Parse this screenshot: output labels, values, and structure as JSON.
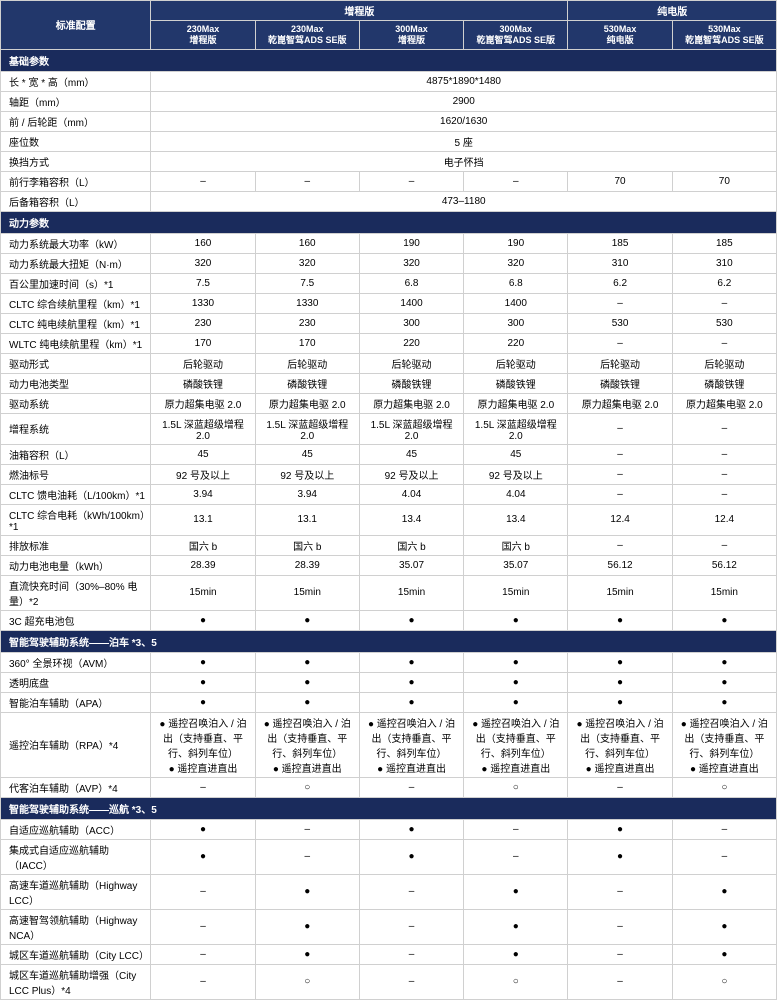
{
  "header": {
    "stdConfig": "标准配置",
    "group1": "增程版",
    "group2": "纯电版",
    "cols": [
      {
        "t": "230Max",
        "s": "增程版"
      },
      {
        "t": "230Max",
        "s": "乾崑智驾ADS SE版"
      },
      {
        "t": "300Max",
        "s": "增程版"
      },
      {
        "t": "300Max",
        "s": "乾崑智驾ADS SE版"
      },
      {
        "t": "530Max",
        "s": "纯电版"
      },
      {
        "t": "530Max",
        "s": "乾崑智驾ADS SE版"
      }
    ]
  },
  "sections": [
    {
      "title": "基础参数",
      "rows": [
        {
          "l": "长 * 宽 * 高（mm）",
          "span": "4875*1890*1480"
        },
        {
          "l": "轴距（mm）",
          "span": "2900"
        },
        {
          "l": "前 / 后轮距（mm）",
          "span": "1620/1630"
        },
        {
          "l": "座位数",
          "span": "5 座"
        },
        {
          "l": "换挡方式",
          "span": "电子怀挡"
        },
        {
          "l": "前行李箱容积（L）",
          "v": [
            "–",
            "–",
            "–",
            "–",
            "70",
            "70"
          ]
        },
        {
          "l": "后备箱容积（L）",
          "span": "473–1180"
        }
      ]
    },
    {
      "title": "动力参数",
      "rows": [
        {
          "l": "动力系统最大功率（kW）",
          "v": [
            "160",
            "160",
            "190",
            "190",
            "185",
            "185"
          ]
        },
        {
          "l": "动力系统最大扭矩（N·m）",
          "v": [
            "320",
            "320",
            "320",
            "320",
            "310",
            "310"
          ]
        },
        {
          "l": "百公里加速时间（s）*1",
          "v": [
            "7.5",
            "7.5",
            "6.8",
            "6.8",
            "6.2",
            "6.2"
          ]
        },
        {
          "l": "CLTC 综合续航里程（km）*1",
          "v": [
            "1330",
            "1330",
            "1400",
            "1400",
            "–",
            "–"
          ]
        },
        {
          "l": "CLTC 纯电续航里程（km）*1",
          "v": [
            "230",
            "230",
            "300",
            "300",
            "530",
            "530"
          ]
        },
        {
          "l": "WLTC 纯电续航里程（km）*1",
          "v": [
            "170",
            "170",
            "220",
            "220",
            "–",
            "–"
          ]
        },
        {
          "l": "驱动形式",
          "v": [
            "后轮驱动",
            "后轮驱动",
            "后轮驱动",
            "后轮驱动",
            "后轮驱动",
            "后轮驱动"
          ]
        },
        {
          "l": "动力电池类型",
          "v": [
            "磷酸铁锂",
            "磷酸铁锂",
            "磷酸铁锂",
            "磷酸铁锂",
            "磷酸铁锂",
            "磷酸铁锂"
          ]
        },
        {
          "l": "驱动系统",
          "v": [
            "原力超集电驱 2.0",
            "原力超集电驱 2.0",
            "原力超集电驱 2.0",
            "原力超集电驱 2.0",
            "原力超集电驱 2.0",
            "原力超集电驱 2.0"
          ]
        },
        {
          "l": "增程系统",
          "v": [
            "1.5L 深蓝超级增程 2.0",
            "1.5L 深蓝超级增程 2.0",
            "1.5L 深蓝超级增程 2.0",
            "1.5L 深蓝超级增程 2.0",
            "–",
            "–"
          ]
        },
        {
          "l": "油箱容积（L）",
          "v": [
            "45",
            "45",
            "45",
            "45",
            "–",
            "–"
          ]
        },
        {
          "l": "燃油标号",
          "v": [
            "92 号及以上",
            "92 号及以上",
            "92 号及以上",
            "92 号及以上",
            "–",
            "–"
          ]
        },
        {
          "l": "CLTC 馈电油耗（L/100km）*1",
          "v": [
            "3.94",
            "3.94",
            "4.04",
            "4.04",
            "–",
            "–"
          ]
        },
        {
          "l": "CLTC 综合电耗（kWh/100km）*1",
          "v": [
            "13.1",
            "13.1",
            "13.4",
            "13.4",
            "12.4",
            "12.4"
          ]
        },
        {
          "l": "排放标准",
          "v": [
            "国六 b",
            "国六 b",
            "国六 b",
            "国六 b",
            "–",
            "–"
          ]
        },
        {
          "l": "动力电池电量（kWh）",
          "v": [
            "28.39",
            "28.39",
            "35.07",
            "35.07",
            "56.12",
            "56.12"
          ]
        },
        {
          "l": "直流快充时间（30%–80% 电量）*2",
          "v": [
            "15min",
            "15min",
            "15min",
            "15min",
            "15min",
            "15min"
          ]
        },
        {
          "l": "3C 超充电池包",
          "v": [
            "●",
            "●",
            "●",
            "●",
            "●",
            "●"
          ]
        }
      ]
    },
    {
      "title": "智能驾驶辅助系统——泊车 *3、5",
      "rows": [
        {
          "l": "360° 全景环视（AVM）",
          "v": [
            "●",
            "●",
            "●",
            "●",
            "●",
            "●"
          ]
        },
        {
          "l": "透明底盘",
          "v": [
            "●",
            "●",
            "●",
            "●",
            "●",
            "●"
          ]
        },
        {
          "l": "智能泊车辅助（APA）",
          "v": [
            "●",
            "●",
            "●",
            "●",
            "●",
            "●"
          ]
        },
        {
          "l": "遥控泊车辅助（RPA）*4",
          "v": [
            "● 遥控召唤泊入 / 泊出（支持垂直、平行、斜列车位）\n● 遥控直进直出",
            "● 遥控召唤泊入 / 泊出（支持垂直、平行、斜列车位）\n● 遥控直进直出",
            "● 遥控召唤泊入 / 泊出（支持垂直、平行、斜列车位）\n● 遥控直进直出",
            "● 遥控召唤泊入 / 泊出（支持垂直、平行、斜列车位）\n● 遥控直进直出",
            "● 遥控召唤泊入 / 泊出（支持垂直、平行、斜列车位）\n● 遥控直进直出",
            "● 遥控召唤泊入 / 泊出（支持垂直、平行、斜列车位）\n● 遥控直进直出"
          ]
        },
        {
          "l": "代客泊车辅助（AVP）*4",
          "v": [
            "–",
            "○",
            "–",
            "○",
            "–",
            "○"
          ]
        }
      ]
    },
    {
      "title": "智能驾驶辅助系统——巡航 *3、5",
      "rows": [
        {
          "l": "自适应巡航辅助（ACC）",
          "v": [
            "●",
            "–",
            "●",
            "–",
            "●",
            "–"
          ]
        },
        {
          "l": "集成式自适应巡航辅助（IACC）",
          "v": [
            "●",
            "–",
            "●",
            "–",
            "●",
            "–"
          ]
        },
        {
          "l": "高速车道巡航辅助（Highway LCC）",
          "v": [
            "–",
            "●",
            "–",
            "●",
            "–",
            "●"
          ]
        },
        {
          "l": "高速智驾领航辅助（Highway NCA）",
          "v": [
            "–",
            "●",
            "–",
            "●",
            "–",
            "●"
          ]
        },
        {
          "l": "城区车道巡航辅助（City LCC）",
          "v": [
            "–",
            "●",
            "–",
            "●",
            "–",
            "●"
          ]
        },
        {
          "l": "城区车道巡航辅助增强（City LCC Plus）*4",
          "v": [
            "–",
            "○",
            "–",
            "○",
            "–",
            "○"
          ]
        }
      ]
    }
  ]
}
